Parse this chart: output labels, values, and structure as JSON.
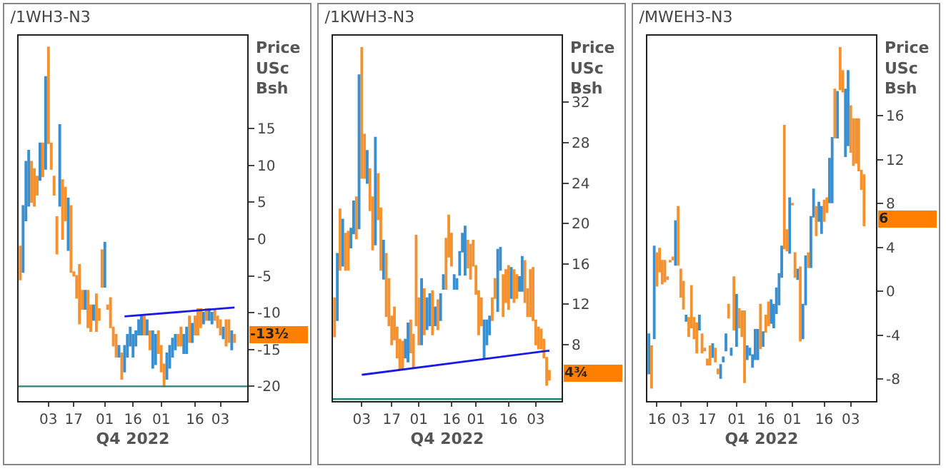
{
  "chart_data": [
    {
      "type": "candlestick",
      "title": "/1WH3-N3",
      "ylabel": "Price USc Bsh",
      "xlabel": "Q4 2022",
      "colors": [
        "#f5922f",
        "#3a8fd0",
        "#3a8fd0",
        "#3a8fd0",
        "#f5922f",
        "#f5922f",
        "#f5922f",
        "#3a8fd0",
        "#f5922f",
        "#3a8fd0",
        "#f5922f",
        "#f5922f",
        "#f5922f",
        "#f5922f",
        "#3a8fd0",
        "#f5922f",
        "#f5922f",
        "#3a8fd0",
        "#f5922f",
        "#f5922f",
        "#f5922f",
        "#f5922f",
        "#f5922f",
        "#3a8fd0",
        "#f5922f",
        "#f5922f",
        "#3a8fd0",
        "#f5922f",
        "#f5922f",
        "#f5922f",
        "#3a8fd0",
        "#f5922f",
        "#f5922f",
        "#f5922f",
        "#f5922f",
        "#3a8fd0",
        "#f5922f",
        "#3a8fd0",
        "#3a8fd0",
        "#3a8fd0",
        "#3a8fd0",
        "#3a8fd0",
        "#3a8fd0",
        "#3a8fd0",
        "#f5922f",
        "#3a8fd0",
        "#f5922f",
        "#3a8fd0",
        "#3a8fd0",
        "#f5922f",
        "#f5922f",
        "#f5922f",
        "#3a8fd0",
        "#3a8fd0",
        "#3a8fd0",
        "#3a8fd0",
        "#f5922f",
        "#f5922f",
        "#3a8fd0",
        "#3a8fd0",
        "#f5922f",
        "#3a8fd0",
        "#f5922f",
        "#f5922f",
        "#f5922f",
        "#3a8fd0",
        "#f5922f",
        "#3a8fd0",
        "#3a8fd0",
        "#f5922f",
        "#f5922f",
        "#f5922f",
        "#3a8fd0",
        "#f5922f",
        "#f5922f",
        "#3a8fd0",
        "#f5922f"
      ],
      "categories": [
        null,
        null,
        null,
        null,
        null,
        null,
        null,
        null,
        null,
        null,
        "03",
        null,
        null,
        null,
        null,
        null,
        null,
        null,
        null,
        "17",
        null,
        null,
        null,
        null,
        null,
        null,
        null,
        null,
        null,
        null,
        "01",
        null,
        null,
        null,
        null,
        null,
        null,
        null,
        null,
        null,
        "16",
        null,
        null,
        null,
        null,
        null,
        null,
        null,
        null,
        null,
        "01",
        null,
        null,
        null,
        null,
        null,
        null,
        null,
        null,
        null,
        null,
        null,
        "16",
        null,
        null,
        null,
        null,
        null,
        null,
        null,
        null,
        "03",
        null,
        null,
        null,
        null,
        null
      ],
      "ohlc": [
        [
          -1,
          -1,
          -5.5,
          -5.5
        ],
        [
          -4.5,
          4.5,
          -4.5,
          4.5
        ],
        [
          2.5,
          10.5,
          2.5,
          10.5
        ],
        [
          4.5,
          12,
          4.5,
          12
        ],
        [
          10.5,
          10.5,
          5,
          5
        ],
        [
          9.5,
          9.5,
          4.5,
          4.5
        ],
        [
          8.5,
          8.5,
          6,
          6
        ],
        [
          8,
          13,
          8,
          13
        ],
        [
          13,
          13,
          8.5,
          8.5
        ],
        [
          9.5,
          22,
          9.5,
          22
        ],
        [
          26,
          26,
          13,
          13
        ],
        [
          13,
          13,
          9.5,
          9.5
        ],
        [
          8.5,
          8.5,
          6,
          6
        ],
        [
          3,
          3,
          -2,
          -2
        ],
        [
          4.5,
          15.5,
          4.5,
          15.5
        ],
        [
          8,
          8,
          0,
          0
        ],
        [
          7,
          7,
          2.5,
          2.5
        ],
        [
          -1.5,
          5.5,
          -1.5,
          5.5
        ],
        [
          4.5,
          4.5,
          -4.5,
          -4.5
        ],
        [
          -4.5,
          -4.5,
          -5,
          -5
        ],
        [
          -5,
          -5,
          -8,
          -8
        ],
        [
          -3.5,
          -3.5,
          -11.5,
          -11.5
        ],
        [
          -7,
          -7,
          -9.5,
          -9.5
        ],
        [
          -9.5,
          -7,
          -9.5,
          -7
        ],
        [
          -7,
          -7,
          -12,
          -12
        ],
        [
          -9,
          -9,
          -12.5,
          -12.5
        ],
        [
          -11,
          -9,
          -11,
          -9
        ],
        [
          -7.5,
          -7.5,
          -12.5,
          -12.5
        ],
        [
          -9.5,
          -9.5,
          -11,
          -11
        ],
        [
          -1.5,
          -1.5,
          -6.5,
          -6.5
        ],
        [
          -6.5,
          -0.5,
          -6.5,
          -0.5
        ],
        [
          -9,
          -9,
          -9.5,
          -9.5
        ],
        [
          -8,
          -8,
          -12,
          -12
        ],
        [
          -12,
          -12,
          -14.5,
          -14.5
        ],
        [
          -13,
          -13,
          -16,
          -16
        ],
        [
          -16,
          -14.5,
          -16,
          -14.5
        ],
        [
          -15.5,
          -15.5,
          -19,
          -19
        ],
        [
          -18,
          -14.5,
          -18,
          -14.5
        ],
        [
          -16,
          -13,
          -16,
          -13
        ],
        [
          -14.5,
          -12,
          -14.5,
          -12
        ],
        [
          -16,
          -13,
          -16,
          -13
        ],
        [
          -14.5,
          -12.5,
          -14.5,
          -12.5
        ],
        [
          -13,
          -11,
          -13,
          -11
        ],
        [
          -13,
          -10.5,
          -13,
          -10.5
        ],
        [
          -10.5,
          -10.5,
          -13,
          -13
        ],
        [
          -13,
          -11,
          -13,
          -11
        ],
        [
          -12.5,
          -12.5,
          -15,
          -15
        ],
        [
          -17.5,
          -12.5,
          -17.5,
          -12.5
        ],
        [
          -17,
          -13,
          -17,
          -13
        ],
        [
          -12.5,
          -12.5,
          -15.5,
          -15.5
        ],
        [
          -14.5,
          -14.5,
          -18,
          -18
        ],
        [
          -17,
          -17,
          -20,
          -20
        ],
        [
          -19,
          -15.5,
          -19,
          -15.5
        ],
        [
          -17.5,
          -14.5,
          -17.5,
          -14.5
        ],
        [
          -16,
          -13.5,
          -16,
          -13.5
        ],
        [
          -15,
          -13,
          -15,
          -13
        ],
        [
          -13,
          -13,
          -14.5,
          -14.5
        ],
        [
          -12,
          -12,
          -14.5,
          -14.5
        ],
        [
          -15.5,
          -13,
          -15.5,
          -13
        ],
        [
          -15.5,
          -12,
          -15.5,
          -12
        ],
        [
          -10.5,
          -10.5,
          -14,
          -14
        ],
        [
          -14,
          -11.5,
          -14,
          -11.5
        ],
        [
          -10.5,
          -10.5,
          -13,
          -13
        ],
        [
          -9.5,
          -9.5,
          -13,
          -13
        ],
        [
          -9.5,
          -9.5,
          -12,
          -12
        ],
        [
          -11.5,
          -10,
          -11.5,
          -10
        ],
        [
          -9.5,
          -9.5,
          -11,
          -11
        ],
        [
          -11,
          -9.5,
          -11,
          -9.5
        ],
        [
          -11.5,
          -10,
          -11.5,
          -10
        ],
        [
          -9.5,
          -9.5,
          -11,
          -11
        ],
        [
          -10.5,
          -10.5,
          -12,
          -12
        ],
        [
          -11,
          -11,
          -13,
          -13
        ],
        [
          -13.5,
          -12,
          -13.5,
          -12
        ],
        [
          -11,
          -11,
          -14.5,
          -14.5
        ],
        [
          -11,
          -11,
          -14,
          -14
        ],
        [
          -15,
          -12.5,
          -15,
          -12.5
        ],
        [
          -13,
          -13,
          -14,
          -14
        ]
      ],
      "series": [
        {
          "type": "line",
          "color": "#1a1ae6",
          "values": [
            null,
            null,
            null,
            null,
            null,
            null,
            null,
            null,
            null,
            null,
            null,
            null,
            null,
            null,
            null,
            null,
            null,
            null,
            null,
            null,
            null,
            null,
            null,
            null,
            null,
            null,
            null,
            null,
            null,
            null,
            null,
            null,
            null,
            null,
            null,
            null,
            null,
            -10.5,
            null,
            null,
            null,
            null,
            null,
            null,
            null,
            null,
            null,
            null,
            null,
            null,
            null,
            null,
            null,
            null,
            null,
            null,
            null,
            null,
            null,
            null,
            null,
            null,
            null,
            null,
            null,
            null,
            null,
            null,
            null,
            null,
            null,
            null,
            null,
            null,
            null,
            null,
            -9.3
          ]
        }
      ],
      "ylim": [
        -22,
        27.6
      ],
      "yticks": [
        -20,
        -15,
        -10,
        -5,
        0,
        5,
        10,
        15
      ],
      "ref_lines": [
        {
          "axis": "y",
          "value": -20,
          "color": "#2a7f7a"
        }
      ],
      "annotations": [
        "-13½"
      ]
    },
    {
      "type": "candlestick",
      "title": "/1KWH3-N3",
      "ylabel": "Price USc Bsh",
      "xlabel": "Q4 2022",
      "colors": [
        "#f5922f",
        "#3a8fd0",
        "#f5922f",
        "#3a8fd0",
        "#f5922f",
        "#f5922f",
        "#3a8fd0",
        "#3a8fd0",
        "#f5922f",
        "#3a8fd0",
        "#f5922f",
        "#f5922f",
        "#3a8fd0",
        "#f5922f",
        "#f5922f",
        "#3a8fd0",
        "#f5922f",
        "#f5922f",
        "#3a8fd0",
        "#f5922f",
        "#f5922f",
        "#f5922f",
        "#f5922f",
        "#f5922f",
        "#f5922f",
        "#f5922f",
        "#3a8fd0",
        "#3a8fd0",
        "#f5922f",
        "#f5922f",
        "#f5922f",
        "#f5922f",
        "#3a8fd0",
        "#f5922f",
        "#3a8fd0",
        "#3a8fd0",
        "#f5922f",
        "#3a8fd0",
        "#f5922f",
        "#3a8fd0",
        "#3a8fd0",
        "#f5922f",
        "#f5922f",
        "#f5922f",
        "#3a8fd0",
        "#3a8fd0",
        "#3a8fd0",
        "#3a8fd0",
        "#3a8fd0",
        "#f5922f",
        "#f5922f",
        "#f5922f",
        "#f5922f",
        "#f5922f",
        "#f5922f",
        "#3a8fd0",
        "#3a8fd0",
        "#3a8fd0",
        "#f5922f",
        "#f5922f",
        "#3a8fd0",
        "#3a8fd0",
        "#f5922f",
        "#f5922f",
        "#f5922f",
        "#3a8fd0",
        "#f5922f",
        "#f5922f",
        "#3a8fd0",
        "#3a8fd0",
        "#f5922f",
        "#f5922f",
        "#f5922f",
        "#f5922f",
        "#f5922f",
        "#f5922f",
        "#f5922f",
        "#f5922f",
        "#f5922f",
        "#f5922f"
      ],
      "categories": [
        null,
        null,
        null,
        null,
        null,
        null,
        null,
        null,
        null,
        null,
        "03",
        null,
        null,
        null,
        null,
        null,
        null,
        null,
        null,
        null,
        null,
        "17",
        null,
        null,
        null,
        null,
        null,
        null,
        null,
        null,
        null,
        "01",
        null,
        null,
        null,
        null,
        null,
        null,
        null,
        null,
        null,
        null,
        null,
        "16",
        null,
        null,
        null,
        null,
        null,
        null,
        null,
        null,
        "01",
        null,
        null,
        null,
        null,
        null,
        null,
        null,
        null,
        null,
        null,
        null,
        "16",
        null,
        null,
        null,
        null,
        null,
        null,
        null,
        null,
        null,
        "03",
        null,
        null,
        null,
        null,
        null
      ],
      "ohlc": [
        [
          12.6,
          12.6,
          8.8,
          8.8
        ],
        [
          10.4,
          17,
          10.4,
          17
        ],
        [
          21.4,
          21.4,
          15.4,
          15.4
        ],
        [
          15.8,
          20.4,
          15.8,
          20.4
        ],
        [
          19,
          19,
          15.4,
          15.4
        ],
        [
          19.2,
          19.2,
          15.4,
          15.4
        ],
        [
          17.6,
          19.5,
          17.6,
          19.5
        ],
        [
          19,
          22.2,
          19,
          22.2
        ],
        [
          22.6,
          22.6,
          18.5,
          18.5
        ],
        [
          19.5,
          34.7,
          19.5,
          34.7
        ],
        [
          37.4,
          37.4,
          24.5,
          24.5
        ],
        [
          28.8,
          28.8,
          24.5,
          24.5
        ],
        [
          24,
          27.2,
          24,
          27.2
        ],
        [
          25.4,
          25.4,
          21.3,
          21.3
        ],
        [
          22.6,
          22.6,
          17.4,
          17.4
        ],
        [
          17.9,
          28.5,
          17.9,
          28.5
        ],
        [
          24.9,
          24.9,
          20.4,
          20.4
        ],
        [
          21.5,
          21.5,
          15.4,
          15.4
        ],
        [
          14.5,
          18.3,
          14.5,
          18.3
        ],
        [
          17,
          17,
          10.8,
          10.8
        ],
        [
          14.5,
          14.5,
          9.9,
          9.9
        ],
        [
          10.8,
          10.8,
          8,
          8
        ],
        [
          11.7,
          11.7,
          8.5,
          8.5
        ],
        [
          9.7,
          9.7,
          6.7,
          6.7
        ],
        [
          8.5,
          8.5,
          5.6,
          5.6
        ],
        [
          8.3,
          8.3,
          5.6,
          5.6
        ],
        [
          6.7,
          8.5,
          6.7,
          8.5
        ],
        [
          6.3,
          10.1,
          6.3,
          10.1
        ],
        [
          10.4,
          10.4,
          7.2,
          7.2
        ],
        [
          9,
          9,
          5.8,
          5.8
        ],
        [
          18.8,
          18.8,
          9.9,
          9.9
        ],
        [
          12.6,
          12.6,
          8,
          8
        ],
        [
          8,
          14.5,
          8,
          14.5
        ],
        [
          13.5,
          13.5,
          9,
          9
        ],
        [
          9.5,
          12.6,
          9.5,
          12.6
        ],
        [
          9.9,
          13,
          9.9,
          13
        ],
        [
          13.3,
          13.3,
          9,
          9
        ],
        [
          9.9,
          11.7,
          9.9,
          11.7
        ],
        [
          12.4,
          12.4,
          9.5,
          9.5
        ],
        [
          10.4,
          13,
          10.4,
          13
        ],
        [
          13.5,
          14.9,
          13.5,
          14.9
        ],
        [
          18.5,
          18.5,
          13.5,
          13.5
        ],
        [
          20.8,
          20.8,
          16.7,
          16.7
        ],
        [
          19,
          19,
          15.8,
          15.8
        ],
        [
          13.5,
          14.9,
          13.5,
          14.9
        ],
        [
          13.5,
          14.5,
          13.5,
          14.5
        ],
        [
          14.9,
          17.2,
          14.9,
          17.2
        ],
        [
          17.2,
          19,
          17.2,
          19
        ],
        [
          14.9,
          19.7,
          14.9,
          19.7
        ],
        [
          18.3,
          18.3,
          15.6,
          15.6
        ],
        [
          17.9,
          17.9,
          14.5,
          14.5
        ],
        [
          18.3,
          18.3,
          15.8,
          15.8
        ],
        [
          15.8,
          15.8,
          13,
          13
        ],
        [
          13.3,
          13.3,
          9,
          9
        ],
        [
          12.6,
          12.6,
          9.9,
          9.9
        ],
        [
          6.7,
          10.4,
          6.7,
          10.4
        ],
        [
          8,
          10.4,
          8,
          10.4
        ],
        [
          9,
          10.8,
          9,
          10.8
        ],
        [
          12.6,
          12.6,
          10.4,
          10.4
        ],
        [
          14.5,
          14.5,
          12.6,
          12.6
        ],
        [
          11.3,
          17.4,
          11.3,
          17.4
        ],
        [
          15.4,
          17.6,
          15.4,
          17.6
        ],
        [
          14.9,
          14.9,
          10.8,
          10.8
        ],
        [
          15.4,
          15.4,
          12.2,
          12.2
        ],
        [
          15.8,
          15.8,
          11.5,
          11.5
        ],
        [
          12.6,
          15.6,
          12.6,
          15.6
        ],
        [
          15.4,
          15.4,
          12.2,
          12.2
        ],
        [
          14.9,
          14.9,
          12.6,
          12.6
        ],
        [
          13.3,
          14.7,
          13.3,
          14.7
        ],
        [
          13.3,
          16.7,
          13.3,
          16.7
        ],
        [
          16.3,
          16.3,
          12.2,
          12.2
        ],
        [
          13.5,
          13.5,
          10.8,
          10.8
        ],
        [
          15.4,
          15.4,
          10.8,
          10.8
        ],
        [
          15.6,
          15.6,
          10.4,
          10.4
        ],
        [
          10.4,
          10.4,
          8,
          8
        ],
        [
          9.7,
          9.7,
          7.6,
          7.6
        ],
        [
          9.5,
          9.5,
          7.6,
          7.6
        ],
        [
          8.5,
          8.5,
          6.7,
          6.7
        ],
        [
          6.7,
          6.7,
          4,
          4
        ],
        [
          5.4,
          5.4,
          4.5,
          4.5
        ]
      ],
      "series": [
        {
          "type": "line",
          "color": "#1a1ae6",
          "values": [
            null,
            null,
            null,
            null,
            null,
            null,
            null,
            null,
            null,
            null,
            5,
            null,
            null,
            null,
            null,
            null,
            null,
            null,
            null,
            null,
            null,
            null,
            null,
            null,
            null,
            null,
            null,
            null,
            null,
            null,
            null,
            null,
            null,
            null,
            null,
            null,
            null,
            null,
            null,
            null,
            null,
            null,
            null,
            null,
            null,
            null,
            null,
            null,
            null,
            null,
            null,
            null,
            null,
            null,
            null,
            null,
            null,
            null,
            null,
            null,
            null,
            null,
            null,
            null,
            null,
            null,
            null,
            null,
            null,
            null,
            null,
            null,
            null,
            null,
            null,
            null,
            null,
            null,
            null,
            7.4
          ]
        }
      ],
      "ylim": [
        2.4,
        38.6
      ],
      "yticks": [
        8,
        12,
        16,
        20,
        24,
        28,
        32
      ],
      "ref_lines": [
        {
          "axis": "y",
          "value": 2.6,
          "color": "#2a7f7a"
        }
      ],
      "annotations": [
        "4¾"
      ]
    },
    {
      "type": "candlestick",
      "title": "/MWEH3-N3",
      "ylabel": "Price USc Bsh",
      "xlabel": "Q4 2022",
      "colors": [
        "#3a8fd0",
        "#f5922f",
        "#3a8fd0",
        "#f5922f",
        "#f5922f",
        "#f5922f",
        "#f5922f",
        "#f5922f",
        "#f5922f",
        "#f5922f",
        "#3a8fd0",
        "#f5922f",
        "#f5922f",
        "#f5922f",
        "#3a8fd0",
        "#f5922f",
        "#f5922f",
        "#f5922f",
        "#f5922f",
        "#3a8fd0",
        "#f5922f",
        "#f5922f",
        "#f5922f",
        "#f5922f",
        "#3a8fd0",
        "#f5922f",
        "#f5922f",
        "#3a8fd0",
        "#3a8fd0",
        "#3a8fd0",
        "#f5922f",
        "#3a8fd0",
        "#f5922f",
        "#3a8fd0",
        "#f5922f",
        "#f5922f",
        "#f5922f",
        "#3a8fd0",
        "#3a8fd0",
        "#3a8fd0",
        "#3a8fd0",
        "#3a8fd0",
        "#f5922f",
        "#3a8fd0",
        "#f5922f",
        "#f5922f",
        "#3a8fd0",
        "#3a8fd0",
        "#3a8fd0",
        "#3a8fd0",
        "#3a8fd0",
        "#f5922f",
        "#f5922f",
        "#3a8fd0",
        "#f5922f",
        "#f5922f",
        "#3a8fd0",
        "#f5922f",
        "#3a8fd0",
        "#3a8fd0",
        "#f5922f",
        "#3a8fd0",
        "#3a8fd0",
        "#f5922f",
        "#3a8fd0",
        "#3a8fd0",
        "#f5922f",
        "#f5922f",
        "#3a8fd0",
        "#3a8fd0",
        "#f5922f",
        "#3a8fd0",
        "#f5922f",
        "#f5922f",
        "#3a8fd0",
        "#3a8fd0",
        "#f5922f",
        "#f5922f",
        "#f5922f",
        "#f5922f",
        "#f5922f",
        "#f5922f"
      ],
      "categories": [
        null,
        null,
        null,
        "16",
        null,
        null,
        null,
        null,
        null,
        null,
        null,
        null,
        "03",
        null,
        null,
        null,
        null,
        null,
        null,
        null,
        null,
        null,
        "17",
        null,
        null,
        null,
        null,
        null,
        null,
        null,
        null,
        null,
        null,
        "01",
        null,
        null,
        null,
        null,
        null,
        null,
        null,
        null,
        null,
        null,
        "16",
        null,
        null,
        null,
        null,
        null,
        null,
        null,
        null,
        null,
        "01",
        null,
        null,
        null,
        null,
        null,
        null,
        null,
        null,
        null,
        null,
        null,
        "16",
        null,
        null,
        null,
        null,
        null,
        null,
        null,
        null,
        null,
        "03",
        null,
        null,
        null,
        null,
        null
      ],
      "ohlc": [
        [
          -7.5,
          -3.9,
          -7.5,
          -3.9
        ],
        [
          -5,
          -5,
          -8.8,
          -8.8
        ],
        [
          -4.3,
          4.1,
          -4.3,
          4.1
        ],
        [
          3.5,
          3.5,
          0.5,
          0.5
        ],
        [
          3.9,
          3.9,
          1.8,
          1.8
        ],
        [
          2.8,
          2.8,
          0.7,
          0.7
        ],
        [
          2.8,
          2.8,
          0.9,
          0.9
        ],
        [
          1.3,
          1.3,
          1.1,
          1.1
        ],
        [
          2.8,
          2.8,
          2.7,
          2.7
        ],
        [
          3.1,
          3.1,
          2.9,
          2.9
        ],
        [
          2.4,
          6.4,
          2.4,
          6.4
        ],
        [
          7.7,
          7.7,
          2.4,
          2.4
        ],
        [
          2,
          2,
          -0.5,
          -0.5
        ],
        [
          0.9,
          0.9,
          -1.6,
          -1.6
        ],
        [
          -2.7,
          -2.2,
          -2.7,
          -2.2
        ],
        [
          -2.4,
          -2.4,
          -4.1,
          -4.1
        ],
        [
          0.5,
          0.5,
          -3.3,
          -3.3
        ],
        [
          -2.4,
          -2.4,
          -4.3,
          -4.3
        ],
        [
          -2.9,
          -2.9,
          -5.6,
          -5.6
        ],
        [
          -3.5,
          -2.2,
          -3.5,
          -2.2
        ],
        [
          -3.9,
          -3.9,
          -5.6,
          -5.6
        ],
        [
          -5.2,
          -5.2,
          -5.4,
          -5.4
        ],
        [
          -6.2,
          -6.2,
          -6.7,
          -6.7
        ],
        [
          -5,
          -5,
          -6.7,
          -6.7
        ],
        [
          -6,
          -4.8,
          -6,
          -4.8
        ],
        [
          -5.2,
          -5.2,
          -6.4,
          -6.4
        ],
        [
          -7.1,
          -7.1,
          -7.5,
          -7.5
        ],
        [
          -7.9,
          -6.7,
          -7.9,
          -6.7
        ],
        [
          -6.4,
          -6,
          -6.4,
          -6
        ],
        [
          -5.4,
          -3.9,
          -5.4,
          -3.9
        ],
        [
          -1.2,
          -1.2,
          -2.4,
          -2.4
        ],
        [
          -5.8,
          -5.2,
          -5.8,
          -5.2
        ],
        [
          1.3,
          1.3,
          -3.5,
          -3.5
        ],
        [
          -5,
          -0.3,
          -5,
          -0.3
        ],
        [
          -1.6,
          -1.6,
          -3.3,
          -3.3
        ],
        [
          -1.8,
          -1.8,
          -4.1,
          -4.1
        ],
        [
          -1.8,
          -1.8,
          -8.3,
          -8.3
        ],
        [
          -6.2,
          -5,
          -6.2,
          -5
        ],
        [
          -5.8,
          -5.2,
          -5.8,
          -5.2
        ],
        [
          -6.9,
          -5.8,
          -6.9,
          -5.8
        ],
        [
          -6.2,
          -3.5,
          -6.2,
          -3.5
        ],
        [
          -6.2,
          -3.5,
          -6.2,
          -3.5
        ],
        [
          -1.2,
          -1.2,
          -5.2,
          -5.2
        ],
        [
          -5,
          -3.7,
          -5,
          -3.7
        ],
        [
          -2.2,
          -2.2,
          -3.7,
          -3.7
        ],
        [
          -1,
          -1,
          -3.1,
          -3.1
        ],
        [
          -2.9,
          -0.8,
          -2.9,
          -0.8
        ],
        [
          -3.3,
          -1.2,
          -3.3,
          -1.2
        ],
        [
          -2,
          0.3,
          -2,
          0.3
        ],
        [
          -1.2,
          1.6,
          -1.2,
          1.6
        ],
        [
          1.3,
          4.1,
          1.3,
          4.1
        ],
        [
          15.1,
          15.1,
          3.9,
          3.9
        ],
        [
          5.6,
          5.6,
          3.7,
          3.7
        ],
        [
          3.5,
          8.5,
          3.5,
          8.5
        ],
        [
          8,
          8,
          7.9,
          7.9
        ],
        [
          3.5,
          3.5,
          1.3,
          1.3
        ],
        [
          1.1,
          2,
          1.1,
          2
        ],
        [
          2.2,
          2.2,
          -4.5,
          -4.5
        ],
        [
          -4.3,
          -1.2,
          -4.3,
          -1.2
        ],
        [
          -1.2,
          3.2,
          -1.2,
          3.2
        ],
        [
          3.5,
          3.5,
          2.2,
          2.2
        ],
        [
          2.2,
          6.8,
          2.2,
          6.8
        ],
        [
          6.8,
          9.3,
          6.8,
          9.3
        ],
        [
          7.7,
          7.7,
          5.1,
          5.1
        ],
        [
          6.4,
          8.1,
          6.4,
          8.1
        ],
        [
          5.3,
          7.7,
          5.3,
          7.7
        ],
        [
          8.3,
          8.3,
          6.4,
          6.4
        ],
        [
          8.5,
          8.5,
          7.2,
          7.2
        ],
        [
          8.1,
          12.1,
          8.1,
          12.1
        ],
        [
          8.1,
          14,
          8.1,
          14
        ],
        [
          18.4,
          18.4,
          14,
          14
        ],
        [
          14,
          18.2,
          14,
          18.2
        ],
        [
          22.2,
          22.2,
          18.4,
          18.4
        ],
        [
          20.1,
          20.1,
          18.2,
          18.2
        ],
        [
          12.3,
          18.4,
          12.3,
          18.4
        ],
        [
          13.3,
          20.1,
          13.3,
          20.1
        ],
        [
          16.9,
          16.9,
          12.7,
          12.7
        ],
        [
          15.7,
          15.7,
          11.5,
          11.5
        ],
        [
          15.7,
          15.7,
          11.7,
          11.7
        ],
        [
          15.7,
          15.7,
          11,
          11
        ],
        [
          11,
          11,
          9.3,
          9.3
        ],
        [
          10.6,
          10.6,
          6,
          6
        ]
      ],
      "ylim": [
        -10,
        23.3
      ],
      "yticks": [
        -8,
        -4,
        0,
        4,
        8,
        12,
        16
      ],
      "annotations": [
        "6"
      ]
    }
  ]
}
